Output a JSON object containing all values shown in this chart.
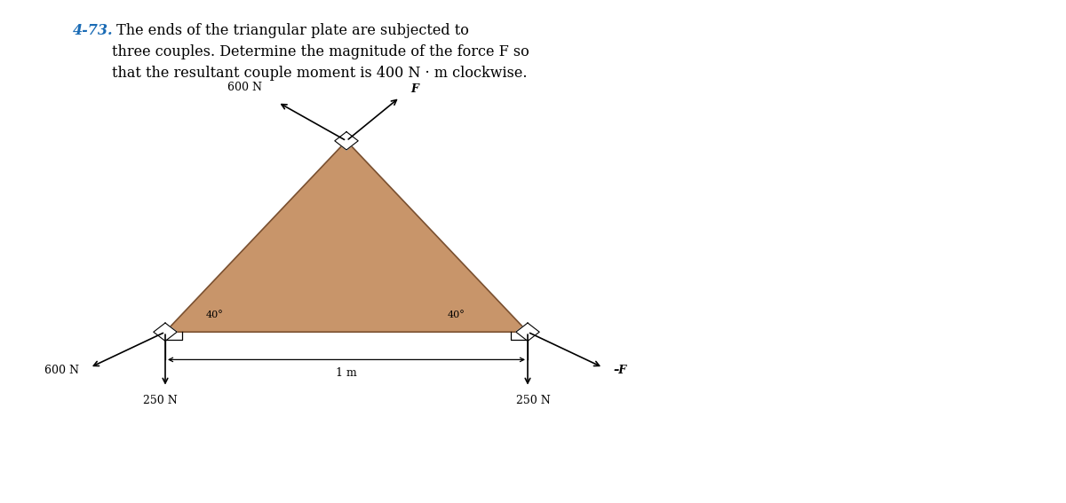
{
  "title_number": "4-73.",
  "title_text": " The ends of the triangular plate are subjected to\nthree couples. Determine the magnitude of the force F so\nthat the resultant couple moment is 400 N · m clockwise.",
  "title_color": "#000000",
  "title_number_color": "#1a6bb5",
  "background_color": "#ffffff",
  "triangle_fill": "#c8956a",
  "triangle_edge": "#7a5030",
  "fig_width": 12.0,
  "fig_height": 5.67,
  "lb": [
    0.155,
    0.34
  ],
  "rb": [
    0.495,
    0.34
  ],
  "ap": [
    0.325,
    0.72
  ],
  "arrow_color": "#000000",
  "label_color": "#000000",
  "dim_label": "1 m",
  "force_labels": {
    "top_left_600": "600 N",
    "top_right_F": "F",
    "left_600": "600 N",
    "right_negF": "–F",
    "bot_left_250": "250 N",
    "bot_right_250": "250 N"
  }
}
